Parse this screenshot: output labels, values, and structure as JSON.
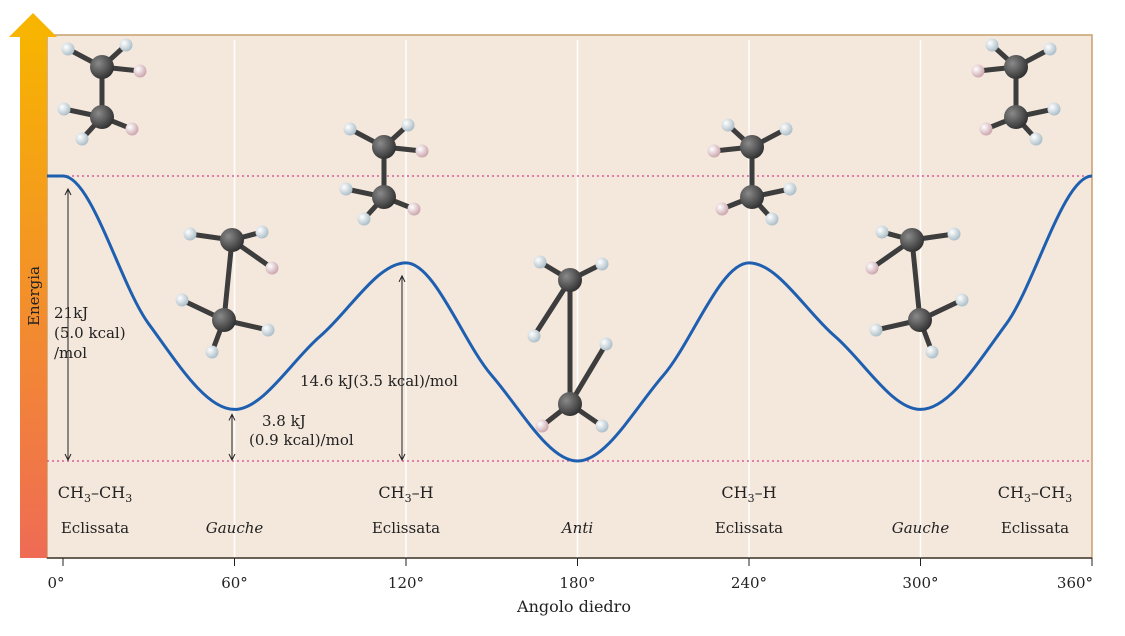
{
  "chart_data": {
    "type": "line",
    "ylabel": "Energia",
    "xlabel": "Angolo diedro",
    "xlim": [
      0,
      360
    ],
    "x_ticks": [
      "0°",
      "60°",
      "120°",
      "180°",
      "240°",
      "300°",
      "360°"
    ],
    "series": [
      {
        "x": [
          0,
          30,
          60,
          90,
          120,
          150,
          180,
          210,
          240,
          270,
          300,
          330,
          360
        ],
        "y": [
          21,
          10.1,
          3.8,
          9.2,
          14.6,
          6.3,
          0,
          6.3,
          14.6,
          9.2,
          3.8,
          10.1,
          21
        ],
        "color": "#1f5fb0"
      }
    ],
    "levels": {
      "top_dotted": 21,
      "bottom_dotted": 0,
      "color": "#d4408a"
    },
    "conformations": [
      {
        "angle": 0,
        "formula": [
          "CH",
          "3",
          "–CH",
          "3"
        ],
        "name": "Eclissata",
        "italic": false
      },
      {
        "angle": 60,
        "formula": null,
        "name": "Gauche",
        "italic": true
      },
      {
        "angle": 120,
        "formula": [
          "CH",
          "3",
          "–H",
          ""
        ],
        "name": "Eclissata",
        "italic": false
      },
      {
        "angle": 180,
        "formula": null,
        "name": "Anti",
        "italic": true
      },
      {
        "angle": 240,
        "formula": [
          "CH",
          "3",
          "–H",
          ""
        ],
        "name": "Eclissata",
        "italic": false
      },
      {
        "angle": 300,
        "formula": null,
        "name": "Gauche",
        "italic": true
      },
      {
        "angle": 360,
        "formula": [
          "CH",
          "3",
          "–CH",
          "3"
        ],
        "name": "Eclissata",
        "italic": false
      }
    ],
    "annotations": {
      "barrier_total": [
        "21kJ",
        "(5.0 kcal)",
        "/mol"
      ],
      "barrier_ch3h": "14.6 kJ(3.5 kcal)/mol",
      "gauche_diff": [
        "3.8 kJ",
        "(0.9 kcal)/mol"
      ]
    },
    "colors": {
      "panel": "#f4e8dd",
      "panel_border": "#c79f6e",
      "arrow_top": "#f7b400",
      "arrow_bottom": "#ef6b55",
      "carbon": "#4a4a4a",
      "hydrogen": "#d8e6ec",
      "hydrogen_marked": "#eccbd0"
    },
    "molecules": [
      {
        "angle": 0,
        "type": "eclipsed"
      },
      {
        "angle": 60,
        "type": "gauche"
      },
      {
        "angle": 120,
        "type": "eclipsed"
      },
      {
        "angle": 180,
        "type": "anti"
      },
      {
        "angle": 240,
        "type": "eclipsed"
      },
      {
        "angle": 300,
        "type": "gauche"
      },
      {
        "angle": 360,
        "type": "eclipsed"
      }
    ]
  }
}
